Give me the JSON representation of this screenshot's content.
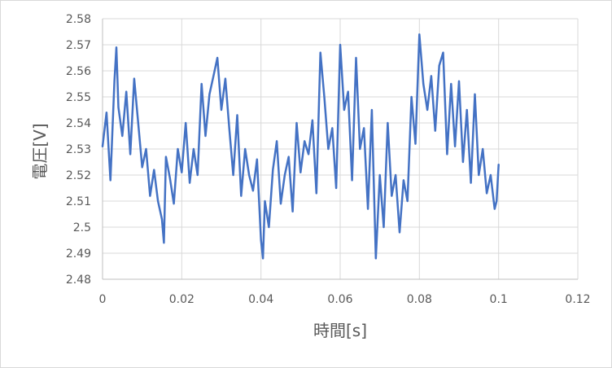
{
  "chart_data": {
    "type": "line",
    "title": "",
    "xlabel": "時間[s]",
    "ylabel": "電圧[V]",
    "xlim": [
      0,
      0.12
    ],
    "ylim": [
      2.48,
      2.58
    ],
    "x_ticks": [
      "0",
      "0.02",
      "0.04",
      "0.06",
      "0.08",
      "0.1",
      "0.12"
    ],
    "y_ticks": [
      "2.48",
      "2.49",
      "2.5",
      "2.51",
      "2.52",
      "2.53",
      "2.54",
      "2.55",
      "2.56",
      "2.57",
      "2.58"
    ],
    "grid": true,
    "series": [
      {
        "color": "#4472c4",
        "x": [
          0,
          0.001,
          0.002,
          0.003,
          0.0035,
          0.004,
          0.005,
          0.006,
          0.007,
          0.008,
          0.009,
          0.01,
          0.011,
          0.012,
          0.013,
          0.014,
          0.015,
          0.0155,
          0.016,
          0.017,
          0.018,
          0.019,
          0.02,
          0.021,
          0.022,
          0.023,
          0.024,
          0.025,
          0.026,
          0.027,
          0.028,
          0.029,
          0.03,
          0.031,
          0.032,
          0.033,
          0.034,
          0.035,
          0.036,
          0.037,
          0.038,
          0.039,
          0.04,
          0.0405,
          0.041,
          0.042,
          0.043,
          0.044,
          0.045,
          0.046,
          0.047,
          0.048,
          0.049,
          0.05,
          0.051,
          0.052,
          0.053,
          0.054,
          0.055,
          0.056,
          0.057,
          0.058,
          0.059,
          0.06,
          0.061,
          0.062,
          0.063,
          0.064,
          0.065,
          0.066,
          0.067,
          0.068,
          0.069,
          0.07,
          0.071,
          0.072,
          0.073,
          0.074,
          0.075,
          0.076,
          0.077,
          0.078,
          0.079,
          0.08,
          0.081,
          0.082,
          0.083,
          0.084,
          0.085,
          0.086,
          0.087,
          0.088,
          0.089,
          0.09,
          0.091,
          0.092,
          0.093,
          0.094,
          0.095,
          0.096,
          0.097,
          0.098,
          0.099,
          0.0995,
          0.1
        ],
        "y": [
          2.531,
          2.544,
          2.518,
          2.556,
          2.569,
          2.546,
          2.535,
          2.552,
          2.528,
          2.557,
          2.54,
          2.523,
          2.53,
          2.512,
          2.522,
          2.51,
          2.503,
          2.494,
          2.527,
          2.519,
          2.509,
          2.53,
          2.521,
          2.54,
          2.517,
          2.53,
          2.52,
          2.555,
          2.535,
          2.551,
          2.558,
          2.565,
          2.545,
          2.557,
          2.538,
          2.52,
          2.543,
          2.512,
          2.53,
          2.52,
          2.514,
          2.526,
          2.495,
          2.488,
          2.51,
          2.5,
          2.522,
          2.533,
          2.509,
          2.52,
          2.527,
          2.506,
          2.54,
          2.521,
          2.533,
          2.528,
          2.541,
          2.513,
          2.567,
          2.55,
          2.53,
          2.538,
          2.515,
          2.57,
          2.545,
          2.552,
          2.518,
          2.565,
          2.53,
          2.538,
          2.507,
          2.545,
          2.488,
          2.52,
          2.5,
          2.54,
          2.512,
          2.52,
          2.498,
          2.518,
          2.51,
          2.55,
          2.532,
          2.574,
          2.555,
          2.545,
          2.558,
          2.537,
          2.562,
          2.567,
          2.528,
          2.555,
          2.531,
          2.556,
          2.525,
          2.545,
          2.517,
          2.551,
          2.52,
          2.53,
          2.513,
          2.52,
          2.507,
          2.51,
          2.524
        ]
      }
    ]
  }
}
